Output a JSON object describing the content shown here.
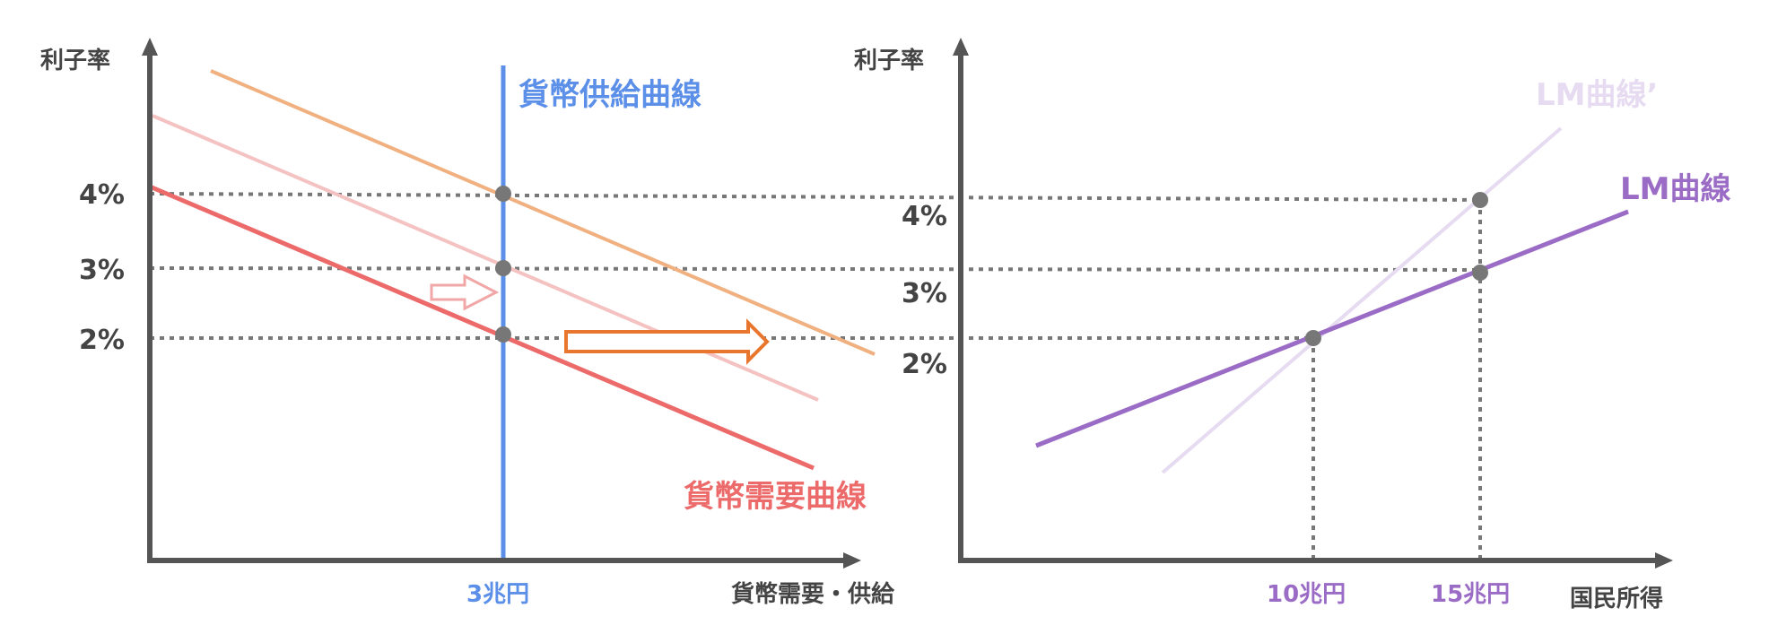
{
  "colors": {
    "axis": "#555555",
    "guide": "#777777",
    "supply": "#5b8fe8",
    "demand": "#ec6a6a",
    "demand_mid": "#f5c2c2",
    "demand_high": "#f0b07f",
    "arrow_small": "#f2a7a7",
    "arrow_big": "#e8762e",
    "lm": "#9b6cc6",
    "lm_shifted": "#e6dbf1",
    "point": "#777777"
  },
  "left_chart": {
    "y_axis_label": "利子率",
    "x_axis_label": "貨幣需要・供給",
    "y_ticks": [
      "4%",
      "3%",
      "2%"
    ],
    "supply_x_label": "3兆円",
    "supply_curve_label": "貨幣供給曲線",
    "demand_curve_label": "貨幣需要曲線",
    "arrow_small_icon": "outline-arrow-right",
    "arrow_big_icon": "outline-arrow-right"
  },
  "right_chart": {
    "y_axis_label": "利子率",
    "x_axis_label": "国民所得",
    "y_ticks": [
      "4%",
      "3%",
      "2%"
    ],
    "x_ticks": [
      "10兆円",
      "15兆円"
    ],
    "lm_label": "LM曲線",
    "lm_shifted_label": "LM曲線’"
  }
}
